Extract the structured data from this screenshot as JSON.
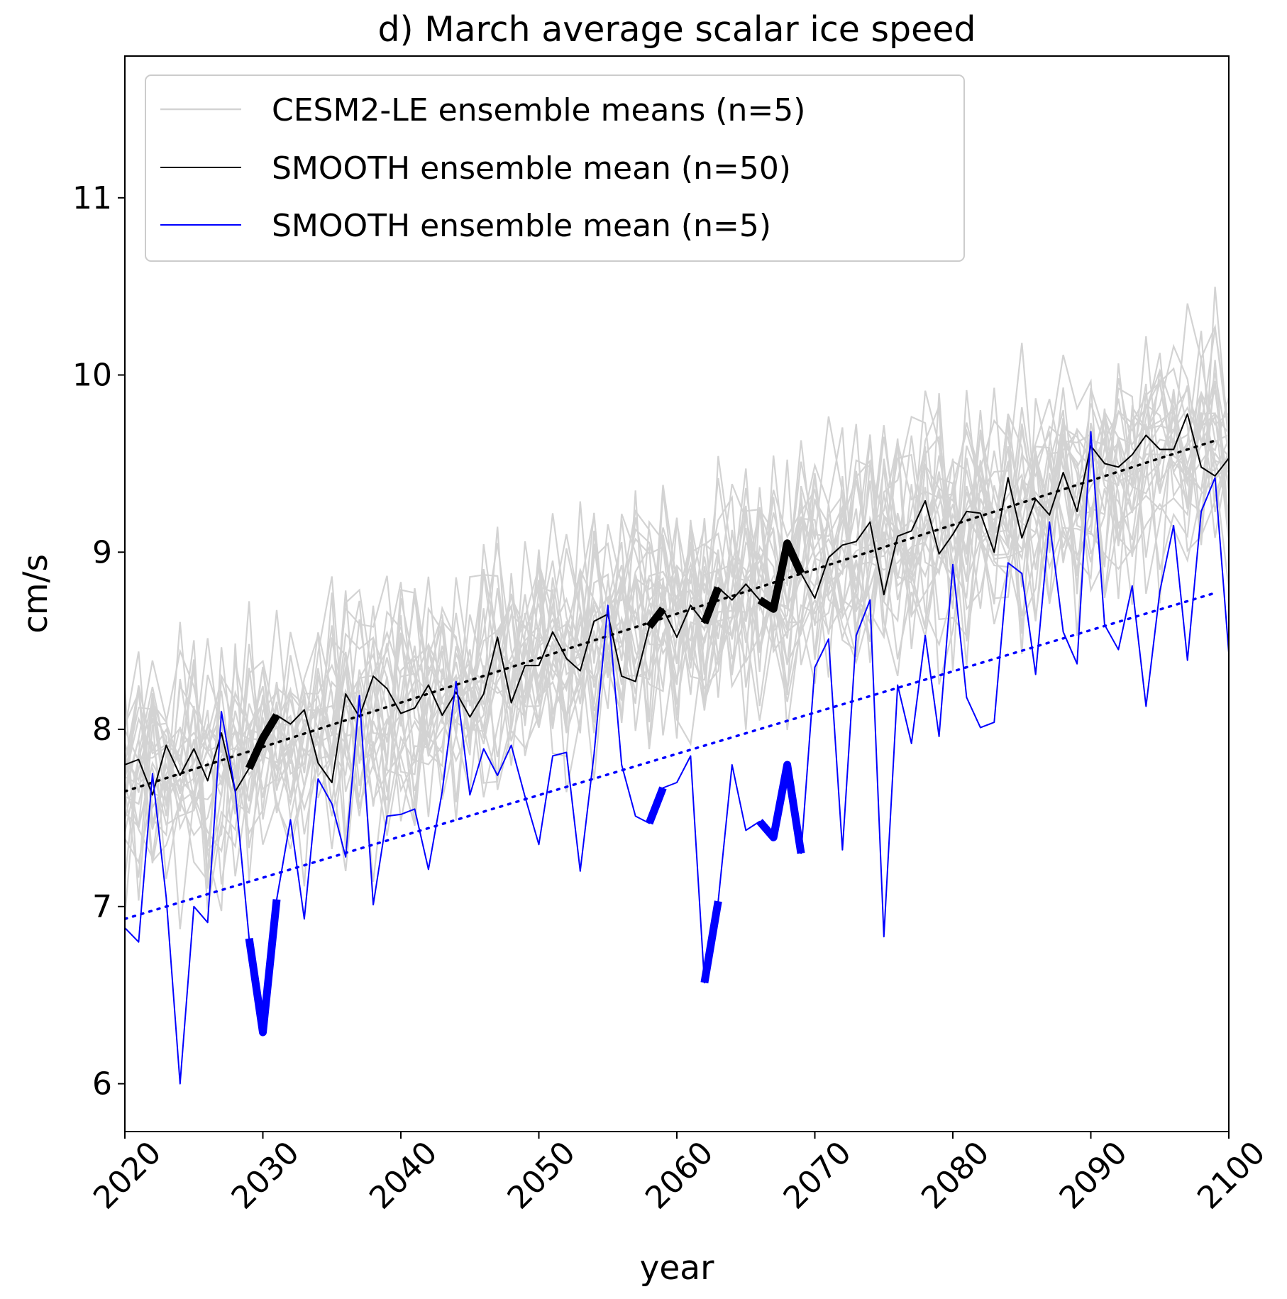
{
  "chart_data": {
    "type": "line",
    "title": "d) March average scalar ice speed",
    "xlabel": "year",
    "ylabel": "cm/s",
    "xlim": [
      2020,
      2100
    ],
    "ylim": [
      5.73,
      11.8
    ],
    "xticks": [
      2020,
      2030,
      2040,
      2050,
      2060,
      2070,
      2080,
      2090,
      2100
    ],
    "yticks": [
      6,
      7,
      8,
      9,
      10,
      11
    ],
    "legend_position": "top-left",
    "grid": false,
    "colors": {
      "cesm_spaghetti": "#d3d3d3",
      "smooth_n50": "#000000",
      "smooth_n5": "#0000ff"
    },
    "series": [
      {
        "name": "CESM2-LE ensemble means (n=5)",
        "role": "spaghetti",
        "color": "#d3d3d3",
        "note": "many overlapping grey member traces; linear envelope",
        "start": [
          2020,
          7.65
        ],
        "end": [
          2100,
          9.65
        ],
        "spread": 0.5
      },
      {
        "name": "SMOOTH ensemble mean (n=50)",
        "color": "#000000",
        "x": [
          2020,
          2021,
          2022,
          2023,
          2024,
          2025,
          2026,
          2027,
          2028,
          2029,
          2030,
          2031,
          2032,
          2033,
          2034,
          2035,
          2036,
          2037,
          2038,
          2039,
          2040,
          2041,
          2042,
          2043,
          2044,
          2045,
          2046,
          2047,
          2048,
          2049,
          2050,
          2051,
          2052,
          2053,
          2054,
          2055,
          2056,
          2057,
          2058,
          2059,
          2060,
          2061,
          2062,
          2063,
          2064,
          2065,
          2066,
          2067,
          2068,
          2069,
          2070,
          2071,
          2072,
          2073,
          2074,
          2075,
          2076,
          2077,
          2078,
          2079,
          2080,
          2081,
          2082,
          2083,
          2084,
          2085,
          2086,
          2087,
          2088,
          2089,
          2090,
          2091,
          2092,
          2093,
          2094,
          2095,
          2096,
          2097,
          2098,
          2099,
          2100
        ],
        "y": [
          7.8,
          7.83,
          7.63,
          7.91,
          7.74,
          7.89,
          7.71,
          7.98,
          7.65,
          7.78,
          7.95,
          8.08,
          8.03,
          8.11,
          7.81,
          7.7,
          8.2,
          8.07,
          8.3,
          8.23,
          8.09,
          8.12,
          8.25,
          8.08,
          8.21,
          8.07,
          8.2,
          8.52,
          8.15,
          8.36,
          8.36,
          8.55,
          8.4,
          8.33,
          8.61,
          8.65,
          8.3,
          8.27,
          8.58,
          8.68,
          8.52,
          8.7,
          8.6,
          8.8,
          8.73,
          8.82,
          8.73,
          8.68,
          9.05,
          8.88,
          8.74,
          8.97,
          9.04,
          9.06,
          9.17,
          8.76,
          9.09,
          9.12,
          9.29,
          8.99,
          9.1,
          9.23,
          9.22,
          9.0,
          9.42,
          9.08,
          9.3,
          9.21,
          9.45,
          9.23,
          9.6,
          9.5,
          9.48,
          9.55,
          9.66,
          9.58,
          9.58,
          9.78,
          9.48,
          9.43,
          9.53
        ]
      },
      {
        "name": "SMOOTH ensemble mean (n=5)",
        "color": "#0000ff",
        "x": [
          2020,
          2021,
          2022,
          2023,
          2024,
          2025,
          2026,
          2027,
          2028,
          2029,
          2030,
          2031,
          2032,
          2033,
          2034,
          2035,
          2036,
          2037,
          2038,
          2039,
          2040,
          2041,
          2042,
          2043,
          2044,
          2045,
          2046,
          2047,
          2048,
          2049,
          2050,
          2051,
          2052,
          2053,
          2054,
          2055,
          2056,
          2057,
          2058,
          2059,
          2060,
          2061,
          2062,
          2063,
          2064,
          2065,
          2066,
          2067,
          2068,
          2069,
          2070,
          2071,
          2072,
          2073,
          2074,
          2075,
          2076,
          2077,
          2078,
          2079,
          2080,
          2081,
          2082,
          2083,
          2084,
          2085,
          2086,
          2087,
          2088,
          2089,
          2090,
          2091,
          2092,
          2093,
          2094,
          2095,
          2096,
          2097,
          2098,
          2099,
          2100
        ],
        "y": [
          6.88,
          6.8,
          7.75,
          7.05,
          6.0,
          7.0,
          6.91,
          8.1,
          7.65,
          6.82,
          6.29,
          7.04,
          7.49,
          6.93,
          7.72,
          7.58,
          7.28,
          8.19,
          7.01,
          7.51,
          7.52,
          7.55,
          7.21,
          7.65,
          8.27,
          7.63,
          7.89,
          7.74,
          7.91,
          7.62,
          7.35,
          7.85,
          7.87,
          7.2,
          7.86,
          8.7,
          7.8,
          7.51,
          7.47,
          7.67,
          7.7,
          7.85,
          6.57,
          7.03,
          7.8,
          7.43,
          7.48,
          7.39,
          7.8,
          7.3,
          8.35,
          8.51,
          7.32,
          8.53,
          8.73,
          6.83,
          8.25,
          7.92,
          8.53,
          7.96,
          8.93,
          8.18,
          8.01,
          8.04,
          8.94,
          8.88,
          8.31,
          9.17,
          8.55,
          8.37,
          9.68,
          8.59,
          8.45,
          8.81,
          8.13,
          8.78,
          9.15,
          8.39,
          9.23,
          9.42,
          8.43
        ]
      },
      {
        "name": "",
        "role": "trend",
        "color": "#000000",
        "x": [
          2020,
          2099
        ],
        "y": [
          7.65,
          9.63
        ]
      },
      {
        "name": "",
        "role": "trend",
        "color": "#0000ff",
        "x": [
          2020,
          2099
        ],
        "y": [
          6.93,
          8.77
        ]
      }
    ],
    "highlights": [
      {
        "color": "#000000",
        "x": [
          2029,
          2030,
          2031
        ]
      },
      {
        "color": "#000000",
        "x": [
          2058,
          2059
        ]
      },
      {
        "color": "#000000",
        "x": [
          2062,
          2063
        ]
      },
      {
        "color": "#000000",
        "x": [
          2066,
          2067,
          2068,
          2069
        ]
      },
      {
        "color": "#0000ff",
        "x": [
          2029,
          2030,
          2031
        ]
      },
      {
        "color": "#0000ff",
        "x": [
          2058,
          2059
        ]
      },
      {
        "color": "#0000ff",
        "x": [
          2062,
          2063
        ]
      },
      {
        "color": "#0000ff",
        "x": [
          2066,
          2067,
          2068,
          2069
        ]
      }
    ]
  }
}
